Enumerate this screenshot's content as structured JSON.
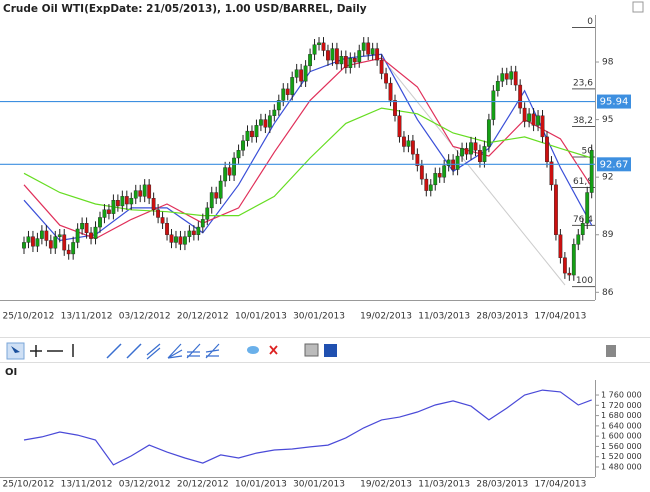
{
  "chart_data": [
    {
      "type": "candlestick",
      "title": "Crude Oil WTI(ExpDate: 21/05/2013), 1.00 USD/BARREL, Daily",
      "categories": [
        null,
        "25/10/2012",
        null,
        null,
        null,
        null,
        null,
        null,
        null,
        null,
        null,
        null,
        null,
        null,
        "13/11/2012",
        null,
        null,
        null,
        null,
        null,
        null,
        null,
        null,
        null,
        null,
        null,
        null,
        "03/12/2012",
        null,
        null,
        null,
        null,
        null,
        null,
        null,
        null,
        null,
        null,
        null,
        null,
        "20/12/2012",
        null,
        null,
        null,
        null,
        null,
        null,
        null,
        null,
        null,
        null,
        null,
        null,
        "10/01/2013",
        null,
        null,
        null,
        null,
        null,
        null,
        null,
        null,
        null,
        null,
        null,
        null,
        "30/01/2013",
        null,
        null,
        null,
        null,
        null,
        null,
        null,
        null,
        null,
        null,
        null,
        null,
        null,
        null,
        "19/02/2013",
        null,
        null,
        null,
        null,
        null,
        null,
        null,
        null,
        null,
        null,
        null,
        null,
        "11/03/2013",
        null,
        null,
        null,
        null,
        null,
        null,
        null,
        null,
        null,
        null,
        null,
        null,
        "28/03/2013",
        null,
        null,
        null,
        null,
        null,
        null,
        null,
        null,
        null,
        null,
        null,
        null,
        "17/04/2013",
        null,
        null,
        null,
        null,
        null,
        null,
        null
      ],
      "candles": {
        "open": [
          88.3,
          88.6,
          88.9,
          88.4,
          88.8,
          89.2,
          88.7,
          88.3,
          88.9,
          89.0,
          88.2,
          88.0,
          88.6,
          89.3,
          89.6,
          89.1,
          88.8,
          89.4,
          89.9,
          90.3,
          90.1,
          90.8,
          90.5,
          91.0,
          90.6,
          90.9,
          91.3,
          91.0,
          91.6,
          90.9,
          90.3,
          89.9,
          89.6,
          89.0,
          88.6,
          88.9,
          88.5,
          88.9,
          89.2,
          89.0,
          89.4,
          89.8,
          90.4,
          91.2,
          90.9,
          91.8,
          92.5,
          92.1,
          93.0,
          93.4,
          93.9,
          94.4,
          94.1,
          94.7,
          95.0,
          94.6,
          95.2,
          95.5,
          96.0,
          96.6,
          96.3,
          97.2,
          97.6,
          97.0,
          97.8,
          98.4,
          98.9,
          99.0,
          98.6,
          98.1,
          98.7,
          97.9,
          98.3,
          97.7,
          98.2,
          98.0,
          98.6,
          99.0,
          98.4,
          98.7,
          98.1,
          97.4,
          96.9,
          96.0,
          95.2,
          94.1,
          93.6,
          93.9,
          93.2,
          92.6,
          91.9,
          91.3,
          91.6,
          92.2,
          92.0,
          92.6,
          92.9,
          92.4,
          93.1,
          93.5,
          93.2,
          93.8,
          93.4,
          92.8,
          93.6,
          95.0,
          96.5,
          97.0,
          97.4,
          97.1,
          97.5,
          96.8,
          95.6,
          94.9,
          95.3,
          94.7,
          95.2,
          94.1,
          92.8,
          91.6,
          89.0,
          87.8,
          87.0,
          86.9,
          88.5,
          89.0,
          89.6,
          91.2
        ],
        "high": [
          88.9,
          89.2,
          89.2,
          89.1,
          89.5,
          89.5,
          89.0,
          89.2,
          89.3,
          89.3,
          88.5,
          88.9,
          89.6,
          89.9,
          89.9,
          89.4,
          89.7,
          90.2,
          90.6,
          90.6,
          91.1,
          91.1,
          91.3,
          91.3,
          91.2,
          91.6,
          91.6,
          91.9,
          91.9,
          91.2,
          90.6,
          90.2,
          89.9,
          89.3,
          89.2,
          89.2,
          89.2,
          89.5,
          89.5,
          89.7,
          90.1,
          90.7,
          91.5,
          91.5,
          92.1,
          92.8,
          92.8,
          93.3,
          93.7,
          94.2,
          94.7,
          94.7,
          95.0,
          95.3,
          95.3,
          95.5,
          95.8,
          96.3,
          96.9,
          96.9,
          97.5,
          97.9,
          97.9,
          98.1,
          98.7,
          99.2,
          99.3,
          99.3,
          98.9,
          99.0,
          99.0,
          98.6,
          98.6,
          98.5,
          98.5,
          98.9,
          99.3,
          99.3,
          99.0,
          99.0,
          98.4,
          97.7,
          97.2,
          96.3,
          95.5,
          94.4,
          94.2,
          94.2,
          93.5,
          92.9,
          92.2,
          91.9,
          92.5,
          92.5,
          92.9,
          93.2,
          93.2,
          93.4,
          93.8,
          93.8,
          94.1,
          94.1,
          93.7,
          93.9,
          95.3,
          96.8,
          97.3,
          97.7,
          97.7,
          97.8,
          97.8,
          97.1,
          95.9,
          95.6,
          95.6,
          95.5,
          95.5,
          94.4,
          93.1,
          91.9,
          89.3,
          88.1,
          87.3,
          88.8,
          89.3,
          89.9,
          91.5,
          93.7
        ],
        "low": [
          88.0,
          88.3,
          88.1,
          88.1,
          88.5,
          88.4,
          88.0,
          88.0,
          88.6,
          87.9,
          87.7,
          87.7,
          88.3,
          89.0,
          88.8,
          88.5,
          88.5,
          89.1,
          89.6,
          89.8,
          89.8,
          90.2,
          90.2,
          90.3,
          90.3,
          90.6,
          90.7,
          90.7,
          90.6,
          90.0,
          89.6,
          89.3,
          88.7,
          88.3,
          88.3,
          88.2,
          88.2,
          88.6,
          88.7,
          88.7,
          89.1,
          89.5,
          90.1,
          90.6,
          90.6,
          91.5,
          91.8,
          91.8,
          92.7,
          93.1,
          93.6,
          93.8,
          93.8,
          94.4,
          94.3,
          94.3,
          94.9,
          95.2,
          95.7,
          96.0,
          96.0,
          96.9,
          96.7,
          96.7,
          97.5,
          98.1,
          98.6,
          98.3,
          97.8,
          97.8,
          97.6,
          97.6,
          97.4,
          97.4,
          97.7,
          97.7,
          98.3,
          98.1,
          98.1,
          97.8,
          97.1,
          96.6,
          95.7,
          94.9,
          93.8,
          93.3,
          93.3,
          92.9,
          92.3,
          91.6,
          91.0,
          91.0,
          91.3,
          91.7,
          91.7,
          92.3,
          92.1,
          92.1,
          92.8,
          92.9,
          92.9,
          93.1,
          92.5,
          92.5,
          93.3,
          94.7,
          96.2,
          96.7,
          96.8,
          96.8,
          96.5,
          95.3,
          94.6,
          94.6,
          94.4,
          94.4,
          93.8,
          92.5,
          91.3,
          88.7,
          87.5,
          86.7,
          86.6,
          86.6,
          88.2,
          88.7,
          89.3,
          90.9
        ],
        "close": [
          88.6,
          88.9,
          88.4,
          88.8,
          89.2,
          88.7,
          88.3,
          88.9,
          89.0,
          88.2,
          88.0,
          88.6,
          89.3,
          89.6,
          89.1,
          88.8,
          89.4,
          89.9,
          90.3,
          90.1,
          90.8,
          90.5,
          91.0,
          90.6,
          90.9,
          91.3,
          91.0,
          91.6,
          90.9,
          90.3,
          89.9,
          89.6,
          89.0,
          88.6,
          88.9,
          88.5,
          88.9,
          89.2,
          89.0,
          89.4,
          89.8,
          90.4,
          91.2,
          90.9,
          91.8,
          92.5,
          92.1,
          93.0,
          93.4,
          93.9,
          94.4,
          94.1,
          94.7,
          95.0,
          94.6,
          95.2,
          95.5,
          96.0,
          96.6,
          96.3,
          97.2,
          97.6,
          97.0,
          97.8,
          98.4,
          98.9,
          99.0,
          98.6,
          98.1,
          98.7,
          97.9,
          98.3,
          97.7,
          98.2,
          98.0,
          98.6,
          99.0,
          98.4,
          98.7,
          98.1,
          97.4,
          96.9,
          96.0,
          95.2,
          94.1,
          93.6,
          93.9,
          93.2,
          92.6,
          91.9,
          91.3,
          91.6,
          92.2,
          92.0,
          92.6,
          92.9,
          92.4,
          93.1,
          93.5,
          93.2,
          93.8,
          93.4,
          92.8,
          93.6,
          95.0,
          96.5,
          97.0,
          97.4,
          97.1,
          97.5,
          96.8,
          95.6,
          94.9,
          95.3,
          94.7,
          95.2,
          94.1,
          92.8,
          91.6,
          89.0,
          87.8,
          87.0,
          86.9,
          88.5,
          89.0,
          89.6,
          91.2,
          93.4
        ],
        "up_color": "#14a014",
        "down_color": "#cc1010"
      },
      "moving_averages": [
        {
          "color": "#3a4fd8",
          "x": [
            0,
            8,
            16,
            24,
            32,
            40,
            48,
            56,
            64,
            72,
            80,
            88,
            96,
            104,
            112,
            120,
            127
          ],
          "values": [
            90.8,
            88.7,
            89.0,
            90.4,
            90.4,
            89.1,
            91.6,
            94.8,
            97.5,
            98.2,
            98.4,
            95.0,
            92.3,
            93.5,
            96.5,
            92.5,
            89.5
          ]
        },
        {
          "color": "#e0305a",
          "x": [
            0,
            8,
            16,
            24,
            32,
            40,
            48,
            56,
            64,
            72,
            80,
            88,
            96,
            104,
            112,
            120,
            127
          ],
          "values": [
            91.6,
            89.5,
            88.8,
            89.8,
            90.6,
            89.6,
            90.4,
            93.3,
            96.0,
            97.8,
            98.2,
            96.7,
            93.6,
            93.1,
            95.0,
            94.0,
            91.5
          ]
        },
        {
          "color": "#66dd22",
          "x": [
            0,
            8,
            16,
            24,
            32,
            40,
            48,
            56,
            64,
            72,
            80,
            88,
            96,
            104,
            112,
            120,
            127
          ],
          "values": [
            92.2,
            91.2,
            90.6,
            90.3,
            90.2,
            90.0,
            90.0,
            91.0,
            93.0,
            94.8,
            95.6,
            95.3,
            94.3,
            93.8,
            94.1,
            93.5,
            93.0
          ]
        }
      ],
      "fibonacci": [
        {
          "value": 99.8,
          "label": "0"
        },
        {
          "value": 96.6,
          "label": "23,6"
        },
        {
          "value": 94.64,
          "label": "38,2"
        },
        {
          "value": 93.05,
          "label": "50"
        },
        {
          "value": 91.46,
          "label": "61,8"
        },
        {
          "value": 89.49,
          "label": "76,4"
        },
        {
          "value": 86.3,
          "label": "100"
        }
      ],
      "hlines": [
        95.94,
        92.67
      ],
      "hline_color": "#3d8fe0",
      "ylim": [
        85.6,
        100.45
      ],
      "yticks": [
        98,
        95,
        92,
        89,
        86
      ]
    },
    {
      "type": "line",
      "title": "OI",
      "color": "#4a4ad8",
      "x": [
        0,
        4,
        8,
        12,
        16,
        20,
        24,
        28,
        32,
        36,
        40,
        44,
        48,
        52,
        56,
        60,
        64,
        68,
        72,
        76,
        80,
        84,
        88,
        92,
        96,
        100,
        104,
        108,
        112,
        116,
        120,
        124,
        127
      ],
      "values": [
        1585000,
        1597000,
        1616000,
        1604000,
        1585000,
        1488000,
        1523000,
        1565000,
        1538000,
        1515000,
        1495000,
        1527000,
        1515000,
        1534000,
        1546000,
        1550000,
        1558000,
        1565000,
        1593000,
        1632000,
        1663000,
        1674000,
        1694000,
        1721000,
        1737000,
        1717000,
        1663000,
        1709000,
        1760000,
        1779000,
        1772000,
        1721000,
        1741000
      ],
      "ylim": [
        1441000,
        1799000
      ],
      "yticks": [
        {
          "value": 1760000,
          "label": "1 760 000"
        },
        {
          "value": 1720000,
          "label": "1 720 000"
        },
        {
          "value": 1680000,
          "label": "1 680 000"
        },
        {
          "value": 1640000,
          "label": "1 640 000"
        },
        {
          "value": 1600000,
          "label": "1 600 000"
        },
        {
          "value": 1560000,
          "label": "1 560 000"
        },
        {
          "value": 1520000,
          "label": "1 520 000"
        },
        {
          "value": 1480000,
          "label": "1 480 000"
        }
      ]
    }
  ]
}
